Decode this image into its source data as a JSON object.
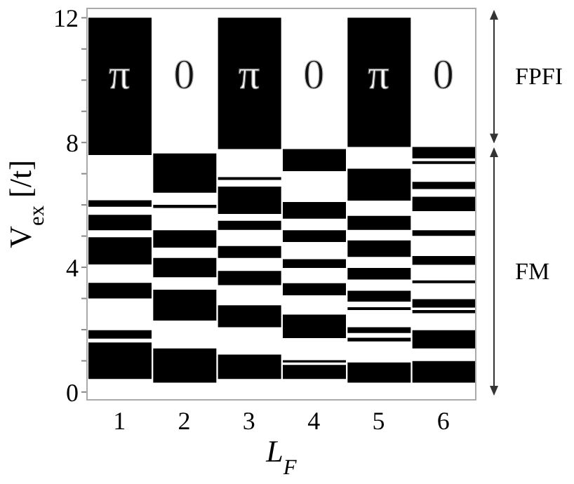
{
  "chart_data": {
    "type": "bar",
    "xlabel": "L$_{F}$",
    "ylabel": "V$_{ex}$ [/t]",
    "categories": [
      "1",
      "2",
      "3",
      "4",
      "5",
      "6"
    ],
    "series": [
      {
        "color": "#000000",
        "base": [
          7.6,
          6.39,
          7.79,
          7.08,
          7.86,
          7.49
        ],
        "values": [
          4.4,
          1.26,
          4.21,
          0.71,
          4.14,
          0.37
        ]
      },
      {
        "color": "#000000",
        "base": [
          5.94,
          5.9,
          6.8,
          5.56,
          6.14,
          7.31
        ],
        "values": [
          0.21,
          0.1,
          0.09,
          0.53,
          1.02,
          0.09
        ]
      },
      {
        "color": "#000000",
        "base": [
          5.19,
          4.63,
          5.71,
          4.81,
          5.2,
          6.51
        ],
        "values": [
          0.49,
          0.56,
          0.88,
          0.38,
          0.45,
          0.23
        ]
      },
      {
        "color": "#000000",
        "base": [
          4.09,
          3.68,
          5.2,
          3.98,
          4.33,
          5.8
        ],
        "values": [
          0.87,
          0.62,
          0.29,
          0.28,
          0.53,
          0.46
        ]
      },
      {
        "color": "#000000",
        "base": [
          3.0,
          2.29,
          4.3,
          3.1,
          3.61,
          5.01
        ],
        "values": [
          0.5,
          0.99,
          0.38,
          0.39,
          0.37,
          0.18
        ]
      },
      {
        "color": "#000000",
        "base": [
          1.71,
          0.3,
          3.43,
          1.73,
          2.9,
          4.08
        ],
        "values": [
          0.27,
          1.1,
          0.45,
          0.75,
          0.35,
          0.28
        ]
      },
      {
        "color": "#000000",
        "base": [
          0.42,
          null,
          2.08,
          0.95,
          2.63,
          3.49
        ],
        "values": [
          1.17,
          null,
          0.7,
          0.07,
          0.09,
          0.09
        ]
      },
      {
        "color": "#000000",
        "base": [
          null,
          null,
          0.42,
          0.42,
          1.89,
          2.71
        ],
        "values": [
          null,
          null,
          0.78,
          0.45,
          0.19,
          0.27
        ]
      },
      {
        "color": "#000000",
        "base": [
          null,
          null,
          null,
          null,
          1.62,
          2.53
        ],
        "values": [
          null,
          null,
          null,
          null,
          0.12,
          0.1
        ]
      },
      {
        "color": "#000000",
        "base": [
          null,
          null,
          null,
          null,
          0.3,
          1.4
        ],
        "values": [
          null,
          null,
          null,
          null,
          0.65,
          0.58
        ]
      },
      {
        "color": "#000000",
        "base": [
          null,
          null,
          null,
          null,
          null,
          0.3
        ],
        "values": [
          null,
          null,
          null,
          null,
          null,
          0.69
        ]
      }
    ],
    "ylim": [
      -0.25,
      12.3
    ],
    "yticks": [
      0,
      {
        "value": 1,
        "label": null
      },
      {
        "value": 2,
        "label": null
      },
      {
        "value": 3,
        "label": null
      },
      4,
      {
        "value": 5,
        "label": null
      },
      {
        "value": 6,
        "label": null
      },
      {
        "value": 7,
        "label": null
      },
      8,
      {
        "value": 9,
        "label": null
      },
      {
        "value": 10,
        "label": null
      },
      {
        "value": 11,
        "label": null
      },
      12
    ],
    "annotations": [
      "π",
      "0",
      "π",
      "0",
      "π",
      "0",
      "FPFI",
      "FM"
    ],
    "grid": false
  }
}
